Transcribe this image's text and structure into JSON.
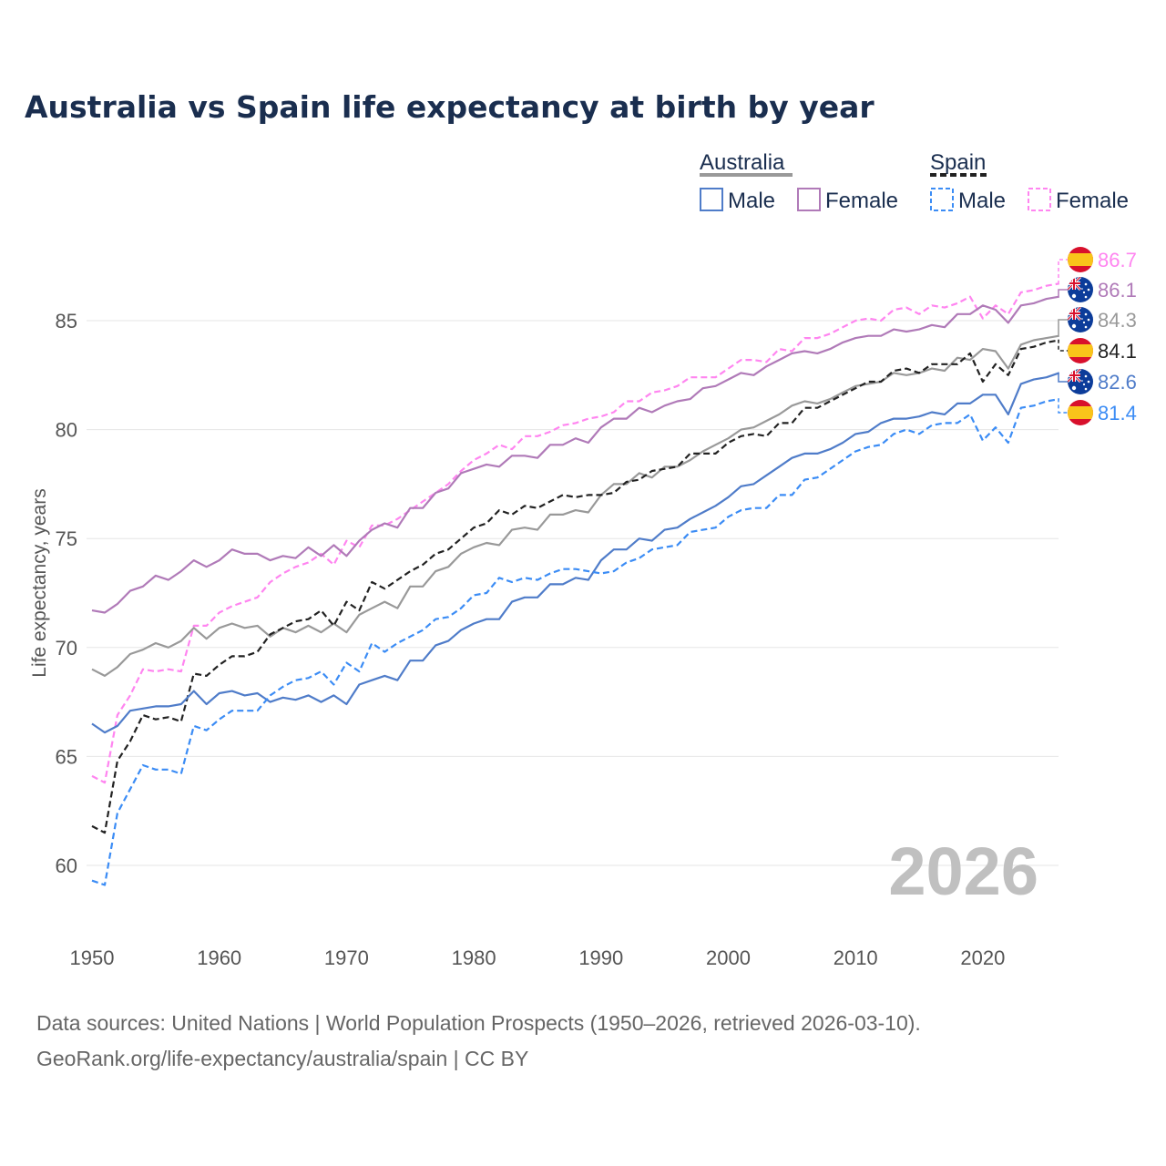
{
  "chart_data": {
    "type": "line",
    "title": "Australia vs Spain life expectancy at birth by year",
    "ylabel": "Life expectancy, years",
    "xlabel": "",
    "xlim": [
      1950,
      2026
    ],
    "ylim": [
      57.1,
      88.5
    ],
    "yticks": [
      60,
      65,
      70,
      75,
      80,
      85
    ],
    "xticks": [
      1950,
      1960,
      1970,
      1980,
      1990,
      2000,
      2010,
      2020
    ],
    "grid": true,
    "current_year_label": "2026",
    "legend": {
      "placement": "top-right",
      "groups": [
        {
          "country": "Australia",
          "items": [
            "Male",
            "Female"
          ]
        },
        {
          "country": "Spain",
          "items": [
            "Male",
            "Female"
          ]
        }
      ]
    },
    "x_start": 1950,
    "series": [
      {
        "name": "Spain Female",
        "country": "Spain",
        "color": "#ff85f0",
        "dashed": true,
        "flag": "spain",
        "end_label": "86.7",
        "values": [
          64.1,
          63.8,
          66.9,
          67.8,
          69.0,
          68.9,
          69.0,
          68.9,
          71.0,
          71.0,
          71.6,
          71.9,
          72.1,
          72.3,
          73.0,
          73.4,
          73.7,
          73.9,
          74.3,
          73.8,
          74.9,
          74.6,
          75.6,
          75.6,
          75.9,
          76.3,
          76.7,
          77.1,
          77.5,
          78.1,
          78.6,
          78.9,
          79.3,
          79.1,
          79.7,
          79.7,
          79.9,
          80.2,
          80.3,
          80.5,
          80.6,
          80.8,
          81.3,
          81.3,
          81.7,
          81.8,
          82.0,
          82.4,
          82.4,
          82.4,
          82.8,
          83.2,
          83.2,
          83.1,
          83.7,
          83.6,
          84.2,
          84.2,
          84.4,
          84.7,
          85.0,
          85.1,
          85.0,
          85.5,
          85.6,
          85.3,
          85.7,
          85.6,
          85.8,
          86.1,
          85.1,
          85.7,
          85.3,
          86.3,
          86.4,
          86.6,
          86.7
        ]
      },
      {
        "name": "Australia Female",
        "country": "Australia",
        "color": "#b07ab8",
        "dashed": false,
        "flag": "australia",
        "end_label": "86.1",
        "values": [
          71.7,
          71.6,
          72.0,
          72.6,
          72.8,
          73.3,
          73.1,
          73.5,
          74.0,
          73.7,
          74.0,
          74.5,
          74.3,
          74.3,
          74.0,
          74.2,
          74.1,
          74.6,
          74.2,
          74.7,
          74.2,
          74.9,
          75.4,
          75.7,
          75.5,
          76.4,
          76.4,
          77.1,
          77.3,
          78.0,
          78.2,
          78.4,
          78.3,
          78.8,
          78.8,
          78.7,
          79.3,
          79.3,
          79.6,
          79.4,
          80.1,
          80.5,
          80.5,
          81.0,
          80.8,
          81.1,
          81.3,
          81.4,
          81.9,
          82.0,
          82.3,
          82.6,
          82.5,
          82.9,
          83.2,
          83.5,
          83.6,
          83.5,
          83.7,
          84.0,
          84.2,
          84.3,
          84.3,
          84.6,
          84.5,
          84.6,
          84.8,
          84.7,
          85.3,
          85.3,
          85.7,
          85.5,
          84.9,
          85.7,
          85.8,
          86.0,
          86.1
        ]
      },
      {
        "name": "Australia",
        "country": "Australia",
        "color": "#999999",
        "dashed": false,
        "flag": "australia",
        "end_label": "84.3",
        "values": [
          69.0,
          68.7,
          69.1,
          69.7,
          69.9,
          70.2,
          70.0,
          70.3,
          70.9,
          70.4,
          70.9,
          71.1,
          70.9,
          71.0,
          70.5,
          70.9,
          70.7,
          71.0,
          70.7,
          71.1,
          70.7,
          71.5,
          71.8,
          72.1,
          71.8,
          72.8,
          72.8,
          73.5,
          73.7,
          74.3,
          74.6,
          74.8,
          74.7,
          75.4,
          75.5,
          75.4,
          76.1,
          76.1,
          76.3,
          76.2,
          77.0,
          77.5,
          77.5,
          78.0,
          77.8,
          78.3,
          78.3,
          78.6,
          79.0,
          79.3,
          79.6,
          80.0,
          80.1,
          80.4,
          80.7,
          81.1,
          81.3,
          81.2,
          81.4,
          81.7,
          82.0,
          82.1,
          82.2,
          82.6,
          82.5,
          82.6,
          82.8,
          82.7,
          83.3,
          83.2,
          83.7,
          83.6,
          82.8,
          83.9,
          84.1,
          84.2,
          84.3
        ]
      },
      {
        "name": "Spain",
        "country": "Spain",
        "color": "#222222",
        "dashed": true,
        "flag": "spain",
        "end_label": "84.1",
        "values": [
          61.8,
          61.5,
          64.8,
          65.7,
          66.9,
          66.7,
          66.8,
          66.6,
          68.8,
          68.7,
          69.2,
          69.6,
          69.6,
          69.8,
          70.6,
          70.9,
          71.2,
          71.3,
          71.7,
          71.0,
          72.1,
          71.7,
          73.0,
          72.7,
          73.1,
          73.5,
          73.8,
          74.3,
          74.5,
          75.0,
          75.5,
          75.7,
          76.3,
          76.1,
          76.5,
          76.4,
          76.7,
          77.0,
          76.9,
          77.0,
          77.0,
          77.1,
          77.6,
          77.7,
          78.1,
          78.2,
          78.3,
          78.9,
          78.9,
          78.9,
          79.4,
          79.7,
          79.8,
          79.7,
          80.3,
          80.3,
          81.0,
          81.0,
          81.3,
          81.6,
          81.9,
          82.2,
          82.2,
          82.7,
          82.8,
          82.6,
          83.0,
          83.0,
          83.0,
          83.5,
          82.2,
          83.0,
          82.5,
          83.7,
          83.8,
          84.0,
          84.1
        ]
      },
      {
        "name": "Australia Male",
        "country": "Australia",
        "color": "#4f7cc9",
        "dashed": false,
        "flag": "australia",
        "end_label": "82.6",
        "values": [
          66.5,
          66.1,
          66.4,
          67.1,
          67.2,
          67.3,
          67.3,
          67.4,
          68.0,
          67.4,
          67.9,
          68.0,
          67.8,
          67.9,
          67.5,
          67.7,
          67.6,
          67.8,
          67.5,
          67.8,
          67.4,
          68.3,
          68.5,
          68.7,
          68.5,
          69.4,
          69.4,
          70.1,
          70.3,
          70.8,
          71.1,
          71.3,
          71.3,
          72.1,
          72.3,
          72.3,
          72.9,
          72.9,
          73.2,
          73.1,
          74.0,
          74.5,
          74.5,
          75.0,
          74.9,
          75.4,
          75.5,
          75.9,
          76.2,
          76.5,
          76.9,
          77.4,
          77.5,
          77.9,
          78.3,
          78.7,
          78.9,
          78.9,
          79.1,
          79.4,
          79.8,
          79.9,
          80.3,
          80.5,
          80.5,
          80.6,
          80.8,
          80.7,
          81.2,
          81.2,
          81.6,
          81.6,
          80.7,
          82.1,
          82.3,
          82.4,
          82.6
        ]
      },
      {
        "name": "Spain Male",
        "country": "Spain",
        "color": "#3b8cf5",
        "dashed": true,
        "flag": "spain",
        "end_label": "81.4",
        "values": [
          59.3,
          59.1,
          62.4,
          63.5,
          64.6,
          64.4,
          64.4,
          64.2,
          66.4,
          66.2,
          66.7,
          67.1,
          67.1,
          67.1,
          67.8,
          68.2,
          68.5,
          68.6,
          68.9,
          68.3,
          69.3,
          68.9,
          70.2,
          69.8,
          70.2,
          70.5,
          70.8,
          71.3,
          71.4,
          71.8,
          72.4,
          72.5,
          73.2,
          73.0,
          73.2,
          73.1,
          73.4,
          73.6,
          73.6,
          73.5,
          73.4,
          73.5,
          73.9,
          74.1,
          74.5,
          74.6,
          74.7,
          75.3,
          75.4,
          75.5,
          76.0,
          76.3,
          76.4,
          76.4,
          77.0,
          77.0,
          77.7,
          77.8,
          78.2,
          78.6,
          79.0,
          79.2,
          79.3,
          79.8,
          80.0,
          79.8,
          80.2,
          80.3,
          80.3,
          80.7,
          79.5,
          80.1,
          79.4,
          81.0,
          81.1,
          81.3,
          81.4
        ]
      }
    ]
  },
  "legend_text": {
    "australia": "Australia",
    "spain": "Spain",
    "male": "Male",
    "female": "Female"
  },
  "source": {
    "line1": "Data sources: United Nations | World Population Prospects (1950–2026, retrieved 2026-03-10).",
    "line2": "GeoRank.org/life-expectancy/australia/spain | CC BY"
  }
}
